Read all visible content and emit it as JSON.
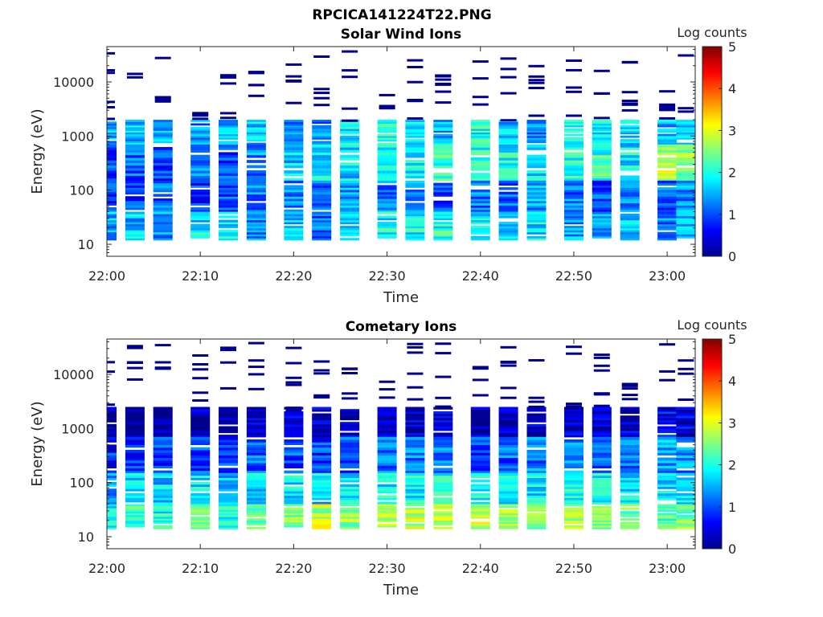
{
  "figure": {
    "title": "RPCICA141224T22.PNG"
  },
  "chart_data": [
    {
      "type": "heatmap",
      "title": "Solar Wind Ions",
      "xlabel": "Time",
      "ylabel": "Energy (eV)",
      "colorbar_label": "Log counts",
      "colorbar_ticks": [
        "0",
        "1",
        "2",
        "3",
        "4",
        "5"
      ],
      "colorbar_range": [
        0,
        5
      ],
      "colormap": "jet",
      "y_scale": "log",
      "xlim": [
        "22:00",
        "23:03"
      ],
      "ylim": [
        6,
        45000
      ],
      "x_ticks": [
        "22:00",
        "22:10",
        "22:20",
        "22:30",
        "22:40",
        "22:50",
        "23:00"
      ],
      "y_ticks": [
        "10",
        "100",
        "1000",
        "10000"
      ],
      "grid": false,
      "sweep_times": [
        "22:00",
        "22:03",
        "22:06",
        "22:10",
        "22:13",
        "22:16",
        "22:20",
        "22:23",
        "22:26",
        "22:30",
        "22:33",
        "22:36",
        "22:40",
        "22:43",
        "22:46",
        "22:50",
        "22:53",
        "22:56",
        "23:00",
        "23:02"
      ],
      "bands": [
        {
          "emin": 700,
          "emax": 2000,
          "log_counts": [
            1.4,
            1.6,
            1.5,
            1.3,
            1.5,
            1.6,
            1.2,
            1.3,
            1.8,
            1.9,
            1.8,
            1.5,
            2.0,
            1.6,
            1.3,
            1.9,
            1.8,
            1.7,
            1.5,
            1.6
          ]
        },
        {
          "emin": 150,
          "emax": 700,
          "log_counts": [
            1.0,
            1.1,
            1.0,
            1.2,
            1.0,
            1.3,
            1.6,
            1.8,
            1.7,
            1.9,
            1.8,
            2.2,
            1.9,
            1.9,
            1.7,
            2.0,
            2.1,
            1.8,
            2.8,
            2.5
          ]
        },
        {
          "emin": 40,
          "emax": 150,
          "log_counts": [
            0.8,
            0.9,
            1.1,
            0.8,
            1.0,
            1.2,
            1.3,
            1.0,
            1.4,
            1.2,
            1.3,
            1.0,
            1.2,
            1.1,
            1.4,
            1.2,
            1.0,
            1.2,
            1.1,
            1.3
          ]
        },
        {
          "emin": 12,
          "emax": 40,
          "log_counts": [
            1.5,
            1.6,
            1.3,
            1.7,
            1.8,
            1.2,
            1.6,
            1.1,
            1.8,
            1.9,
            1.9,
            2.0,
            1.7,
            1.6,
            1.8,
            1.4,
            1.3,
            1.6,
            1.2,
            1.6
          ]
        }
      ]
    },
    {
      "type": "heatmap",
      "title": "Cometary Ions",
      "xlabel": "Time",
      "ylabel": "Energy (eV)",
      "colorbar_label": "Log counts",
      "colorbar_ticks": [
        "0",
        "1",
        "2",
        "3",
        "4",
        "5"
      ],
      "colorbar_range": [
        0,
        5
      ],
      "colormap": "jet",
      "y_scale": "log",
      "xlim": [
        "22:00",
        "23:03"
      ],
      "ylim": [
        6,
        45000
      ],
      "x_ticks": [
        "22:00",
        "22:10",
        "22:20",
        "22:30",
        "22:40",
        "22:50",
        "23:00"
      ],
      "y_ticks": [
        "10",
        "100",
        "1000",
        "10000"
      ],
      "grid": false,
      "sweep_times": [
        "22:00",
        "22:03",
        "22:06",
        "22:10",
        "22:13",
        "22:16",
        "22:20",
        "22:23",
        "22:26",
        "22:30",
        "22:33",
        "22:36",
        "22:40",
        "22:43",
        "22:46",
        "22:50",
        "22:53",
        "22:56",
        "23:00",
        "23:02"
      ],
      "bands": [
        {
          "emin": 700,
          "emax": 2500,
          "log_counts": [
            0.1,
            0.1,
            0.2,
            0.2,
            0.2,
            0.3,
            0.3,
            0.3,
            0.3,
            0.3,
            0.3,
            0.3,
            0.3,
            0.3,
            0.3,
            0.3,
            0.3,
            0.3,
            0.5,
            0.4
          ]
        },
        {
          "emin": 150,
          "emax": 700,
          "log_counts": [
            0.8,
            0.9,
            0.9,
            1.0,
            1.0,
            1.1,
            1.0,
            0.9,
            1.0,
            1.1,
            1.2,
            1.3,
            1.0,
            1.1,
            1.2,
            1.3,
            1.1,
            1.2,
            1.4,
            1.3
          ]
        },
        {
          "emin": 40,
          "emax": 150,
          "log_counts": [
            1.4,
            1.7,
            1.6,
            1.8,
            1.6,
            1.7,
            1.8,
            1.7,
            1.8,
            1.9,
            1.9,
            2.0,
            1.9,
            1.9,
            1.8,
            2.0,
            1.9,
            1.8,
            1.7,
            1.8
          ]
        },
        {
          "emin": 14,
          "emax": 40,
          "log_counts": [
            1.8,
            2.2,
            2.0,
            2.3,
            2.1,
            2.2,
            2.5,
            2.8,
            2.6,
            2.7,
            2.8,
            2.9,
            2.8,
            2.8,
            2.5,
            2.7,
            2.6,
            2.4,
            2.2,
            2.5
          ]
        }
      ]
    }
  ]
}
